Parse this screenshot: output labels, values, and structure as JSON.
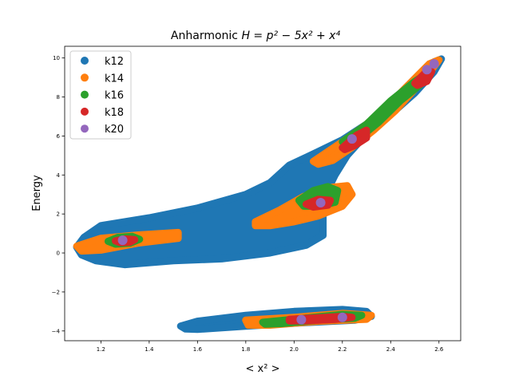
{
  "chart_data": {
    "type": "scatter",
    "title_prefix": "Anharmonic ",
    "title_math": "H = p² − 5x² + x⁴",
    "xlabel": "< x² >",
    "ylabel": "Energy",
    "xlim": [
      1.05,
      2.69
    ],
    "ylim": [
      -4.5,
      10.6
    ],
    "xticks": [
      1.2,
      1.4,
      1.6,
      1.8,
      2.0,
      2.2,
      2.4,
      2.6
    ],
    "yticks": [
      -4,
      -2,
      0,
      2,
      4,
      6,
      8,
      10
    ],
    "xtick_labels": [
      "1.2",
      "1.4",
      "1.6",
      "1.8",
      "2.0",
      "2.2",
      "2.4",
      "2.6"
    ],
    "ytick_labels": [
      "−4",
      "−2",
      "0",
      "2",
      "4",
      "6",
      "8",
      "10"
    ],
    "grid": false,
    "legend_position": "top-left",
    "series": [
      {
        "name": "k12",
        "color": "#1f77b4",
        "regions": [
          [
            [
              1.1,
              0.3
            ],
            [
              1.13,
              0.8
            ],
            [
              1.2,
              1.4
            ],
            [
              1.4,
              1.8
            ],
            [
              1.6,
              2.3
            ],
            [
              1.8,
              3.0
            ],
            [
              1.9,
              3.6
            ],
            [
              1.98,
              4.5
            ],
            [
              2.1,
              5.2
            ],
            [
              2.2,
              5.8
            ],
            [
              2.3,
              6.6
            ],
            [
              2.4,
              7.6
            ],
            [
              2.5,
              8.7
            ],
            [
              2.58,
              9.8
            ],
            [
              2.61,
              9.95
            ],
            [
              2.58,
              9.3
            ],
            [
              2.5,
              8.2
            ],
            [
              2.4,
              7.1
            ],
            [
              2.3,
              6.1
            ],
            [
              2.22,
              5.0
            ],
            [
              2.17,
              4.0
            ],
            [
              2.13,
              3.0
            ],
            [
              2.12,
              2.0
            ],
            [
              2.12,
              0.9
            ],
            [
              2.05,
              0.4
            ],
            [
              1.9,
              0.0
            ],
            [
              1.7,
              -0.3
            ],
            [
              1.5,
              -0.4
            ],
            [
              1.3,
              -0.6
            ],
            [
              1.18,
              -0.4
            ],
            [
              1.12,
              -0.1
            ]
          ],
          [
            [
              1.53,
              -3.75
            ],
            [
              1.6,
              -3.5
            ],
            [
              1.8,
              -3.2
            ],
            [
              2.0,
              -3.0
            ],
            [
              2.2,
              -2.9
            ],
            [
              2.3,
              -3.0
            ],
            [
              2.32,
              -3.25
            ],
            [
              2.25,
              -3.45
            ],
            [
              2.0,
              -3.6
            ],
            [
              1.8,
              -3.75
            ],
            [
              1.6,
              -3.92
            ],
            [
              1.55,
              -3.9
            ]
          ]
        ]
      },
      {
        "name": "k14",
        "color": "#ff7f0e",
        "regions": [
          [
            [
              1.1,
              0.35
            ],
            [
              1.2,
              0.75
            ],
            [
              1.35,
              0.92
            ],
            [
              1.52,
              1.05
            ],
            [
              1.52,
              0.75
            ],
            [
              1.35,
              0.5
            ],
            [
              1.2,
              0.15
            ],
            [
              1.12,
              0.1
            ]
          ],
          [
            [
              1.84,
              1.6
            ],
            [
              1.94,
              2.2
            ],
            [
              2.04,
              2.9
            ],
            [
              2.14,
              3.35
            ],
            [
              2.22,
              3.45
            ],
            [
              2.24,
              3.0
            ],
            [
              2.2,
              2.4
            ],
            [
              2.1,
              1.9
            ],
            [
              2.0,
              1.6
            ],
            [
              1.9,
              1.4
            ],
            [
              1.84,
              1.4
            ]
          ],
          [
            [
              2.08,
              4.7
            ],
            [
              2.2,
              5.7
            ],
            [
              2.3,
              6.6
            ],
            [
              2.4,
              7.7
            ],
            [
              2.48,
              8.7
            ],
            [
              2.56,
              9.7
            ],
            [
              2.6,
              9.9
            ],
            [
              2.57,
              9.4
            ],
            [
              2.5,
              8.4
            ],
            [
              2.42,
              7.3
            ],
            [
              2.33,
              6.3
            ],
            [
              2.25,
              5.5
            ],
            [
              2.16,
              4.75
            ],
            [
              2.1,
              4.55
            ]
          ],
          [
            [
              1.8,
              -3.45
            ],
            [
              2.0,
              -3.3
            ],
            [
              2.2,
              -3.1
            ],
            [
              2.32,
              -3.2
            ],
            [
              2.3,
              -3.4
            ],
            [
              2.1,
              -3.5
            ],
            [
              1.9,
              -3.7
            ],
            [
              1.81,
              -3.7
            ]
          ]
        ]
      },
      {
        "name": "k16",
        "color": "#2ca02c",
        "regions": [
          [
            [
              1.23,
              0.6
            ],
            [
              1.27,
              0.8
            ],
            [
              1.33,
              0.85
            ],
            [
              1.36,
              0.7
            ],
            [
              1.32,
              0.5
            ],
            [
              1.26,
              0.45
            ]
          ],
          [
            [
              2.02,
              2.7
            ],
            [
              2.08,
              3.2
            ],
            [
              2.14,
              3.4
            ],
            [
              2.18,
              3.2
            ],
            [
              2.17,
              2.6
            ],
            [
              2.1,
              2.4
            ],
            [
              2.04,
              2.4
            ]
          ],
          [
            [
              2.2,
              5.7
            ],
            [
              2.3,
              6.6
            ],
            [
              2.4,
              7.8
            ],
            [
              2.5,
              8.8
            ],
            [
              2.55,
              9.2
            ],
            [
              2.52,
              8.6
            ],
            [
              2.44,
              7.8
            ],
            [
              2.35,
              6.7
            ],
            [
              2.27,
              5.9
            ],
            [
              2.22,
              5.5
            ]
          ],
          [
            [
              1.87,
              -3.55
            ],
            [
              2.0,
              -3.4
            ],
            [
              2.2,
              -3.15
            ],
            [
              2.28,
              -3.2
            ],
            [
              2.25,
              -3.35
            ],
            [
              2.1,
              -3.45
            ],
            [
              1.95,
              -3.62
            ],
            [
              1.88,
              -3.65
            ]
          ]
        ]
      },
      {
        "name": "k18",
        "color": "#d62728",
        "regions": [
          [
            [
              1.26,
              0.62
            ],
            [
              1.3,
              0.72
            ],
            [
              1.34,
              0.68
            ],
            [
              1.32,
              0.55
            ],
            [
              1.28,
              0.53
            ]
          ],
          [
            [
              2.05,
              2.5
            ],
            [
              2.1,
              2.75
            ],
            [
              2.15,
              2.7
            ],
            [
              2.14,
              2.45
            ],
            [
              2.08,
              2.35
            ]
          ],
          [
            [
              2.2,
              5.4
            ],
            [
              2.26,
              6.05
            ],
            [
              2.3,
              6.3
            ],
            [
              2.3,
              5.9
            ],
            [
              2.25,
              5.5
            ],
            [
              2.21,
              5.3
            ]
          ],
          [
            [
              2.5,
              8.7
            ],
            [
              2.54,
              9.2
            ],
            [
              2.57,
              9.3
            ],
            [
              2.55,
              8.8
            ],
            [
              2.51,
              8.6
            ]
          ],
          [
            [
              1.98,
              -3.4
            ],
            [
              2.1,
              -3.32
            ],
            [
              2.2,
              -3.25
            ],
            [
              2.24,
              -3.3
            ],
            [
              2.18,
              -3.4
            ],
            [
              2.05,
              -3.48
            ],
            [
              1.98,
              -3.48
            ]
          ]
        ]
      },
      {
        "name": "k20",
        "color": "#9467bd",
        "points": [
          [
            1.29,
            0.65
          ],
          [
            2.11,
            2.58
          ],
          [
            2.24,
            5.85
          ],
          [
            2.55,
            9.4
          ],
          [
            2.58,
            9.7
          ],
          [
            2.03,
            -3.42
          ],
          [
            2.2,
            -3.3
          ]
        ]
      }
    ]
  }
}
